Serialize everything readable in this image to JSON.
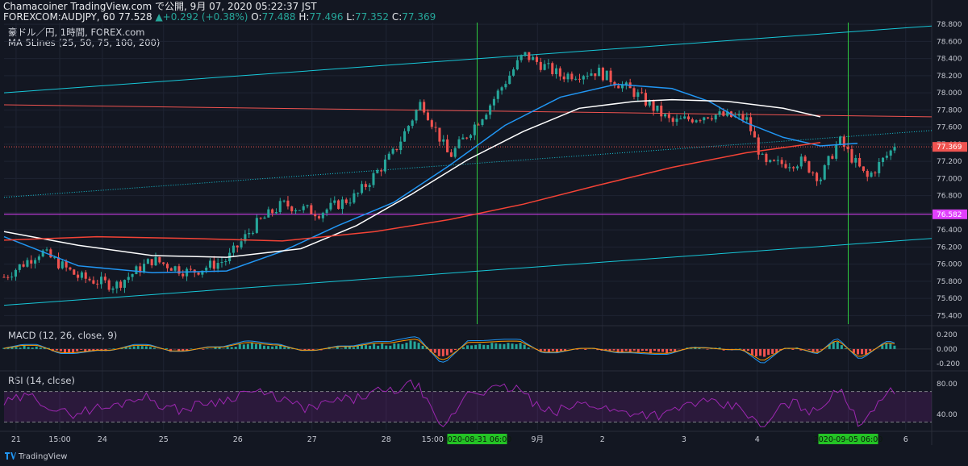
{
  "header": {
    "line1": "Chamacoiner TradingView.com で公開, 9月 07, 2020 05:22:37 JST",
    "line2_prefix": "FOREXCOM:AUDJPY, 60 77.528",
    "line2_change": "▲+0.292 (+0.38%)",
    "line2_ohlc": [
      {
        "label": "O:",
        "value": "77.488"
      },
      {
        "label": "H:",
        "value": "77.496"
      },
      {
        "label": "L:",
        "value": "77.352"
      },
      {
        "label": "C:",
        "value": "77.369"
      }
    ]
  },
  "legend": {
    "symbol": "豪ドル／円, 1時間, FOREX.com",
    "ma": "MA 5Lines (25, 50, 75, 100, 200)",
    "macd": "MACD (12, 26, close, 9)",
    "rsi": "RSI (14, close)"
  },
  "footer": {
    "brand": "TradingView"
  },
  "colors": {
    "background": "#131722",
    "up": "#26a69a",
    "down": "#ef5350",
    "ma_blue": "#2196f3",
    "ma_white": "#ffffff",
    "ma_red": "#f44336",
    "channel": "#17c7d8",
    "level": "#e040fb",
    "vline": "#2ecc40",
    "rsi_line": "#9c27b0"
  },
  "chart_data": [
    {
      "type": "candlestick",
      "ylim": [
        75.3,
        78.82
      ],
      "yticks": [
        "78.800",
        "78.600",
        "78.400",
        "78.200",
        "78.000",
        "77.800",
        "77.600",
        "77.400",
        "77.200",
        "77.000",
        "76.800",
        "76.600",
        "76.400",
        "76.200",
        "76.000",
        "75.800",
        "75.600",
        "75.400"
      ],
      "xticks": [
        "21",
        "15:00",
        "24",
        "25",
        "26",
        "27",
        "28",
        "15:00",
        "2020-08-31  06:00",
        "9月",
        "2",
        "3",
        "4",
        "2020-09-05  06:00",
        "6"
      ],
      "price_tags": [
        {
          "label": "77.369",
          "value": 77.369,
          "color": "#ef5350"
        },
        {
          "label": "76.582",
          "value": 76.582,
          "color": "#e040fb"
        }
      ],
      "horizontal_levels": [
        {
          "value": 76.582,
          "color": "#e040fb"
        }
      ],
      "anchor_closes": [
        {
          "x": 0,
          "close": 75.85
        },
        {
          "x": 0.04,
          "close": 76.15
        },
        {
          "x": 0.08,
          "close": 75.85
        },
        {
          "x": 0.12,
          "close": 75.75
        },
        {
          "x": 0.16,
          "close": 76.05
        },
        {
          "x": 0.2,
          "close": 75.9
        },
        {
          "x": 0.24,
          "close": 76.05
        },
        {
          "x": 0.27,
          "close": 76.45
        },
        {
          "x": 0.3,
          "close": 76.7
        },
        {
          "x": 0.34,
          "close": 76.6
        },
        {
          "x": 0.38,
          "close": 76.8
        },
        {
          "x": 0.42,
          "close": 77.3
        },
        {
          "x": 0.45,
          "close": 77.9
        },
        {
          "x": 0.48,
          "close": 77.25
        },
        {
          "x": 0.52,
          "close": 77.8
        },
        {
          "x": 0.56,
          "close": 78.45
        },
        {
          "x": 0.6,
          "close": 78.2
        },
        {
          "x": 0.64,
          "close": 78.25
        },
        {
          "x": 0.68,
          "close": 78.0
        },
        {
          "x": 0.72,
          "close": 77.65
        },
        {
          "x": 0.76,
          "close": 77.75
        },
        {
          "x": 0.8,
          "close": 77.7
        },
        {
          "x": 0.82,
          "close": 77.15
        },
        {
          "x": 0.86,
          "close": 77.2
        },
        {
          "x": 0.88,
          "close": 77.0
        },
        {
          "x": 0.9,
          "close": 77.45
        },
        {
          "x": 0.93,
          "close": 77.0
        },
        {
          "x": 0.96,
          "close": 77.369
        }
      ],
      "ma_lines": [
        {
          "color": "#2196f3",
          "points": [
            [
              0,
              76.32
            ],
            [
              0.08,
              75.98
            ],
            [
              0.16,
              75.9
            ],
            [
              0.24,
              75.92
            ],
            [
              0.3,
              76.15
            ],
            [
              0.36,
              76.45
            ],
            [
              0.42,
              76.72
            ],
            [
              0.48,
              77.15
            ],
            [
              0.54,
              77.62
            ],
            [
              0.6,
              77.95
            ],
            [
              0.66,
              78.1
            ],
            [
              0.72,
              78.05
            ],
            [
              0.76,
              77.9
            ],
            [
              0.8,
              77.65
            ],
            [
              0.84,
              77.48
            ],
            [
              0.88,
              77.38
            ],
            [
              0.92,
              77.41
            ]
          ]
        },
        {
          "color": "#ffffff",
          "points": [
            [
              0,
              76.38
            ],
            [
              0.08,
              76.22
            ],
            [
              0.16,
              76.1
            ],
            [
              0.24,
              76.08
            ],
            [
              0.32,
              76.18
            ],
            [
              0.38,
              76.45
            ],
            [
              0.44,
              76.82
            ],
            [
              0.5,
              77.22
            ],
            [
              0.56,
              77.55
            ],
            [
              0.62,
              77.82
            ],
            [
              0.68,
              77.9
            ],
            [
              0.72,
              77.92
            ],
            [
              0.78,
              77.9
            ],
            [
              0.84,
              77.82
            ],
            [
              0.88,
              77.72
            ]
          ]
        },
        {
          "color": "#f44336",
          "points": [
            [
              0,
              76.28
            ],
            [
              0.1,
              76.32
            ],
            [
              0.2,
              76.3
            ],
            [
              0.3,
              76.27
            ],
            [
              0.4,
              76.38
            ],
            [
              0.48,
              76.52
            ],
            [
              0.56,
              76.7
            ],
            [
              0.64,
              76.92
            ],
            [
              0.72,
              77.13
            ],
            [
              0.8,
              77.3
            ],
            [
              0.88,
              77.42
            ]
          ]
        }
      ],
      "channel_lines": [
        {
          "color": "#17c7d8",
          "points": [
            [
              0,
              78.0
            ],
            [
              1,
              78.78
            ]
          ]
        },
        {
          "color": "#17c7d8",
          "points": [
            [
              0,
              75.52
            ],
            [
              1,
              76.3
            ]
          ]
        },
        {
          "color": "#17c7d8",
          "dotted": true,
          "points": [
            [
              0,
              76.78
            ],
            [
              1,
              77.56
            ]
          ]
        },
        {
          "color": "#ef5350",
          "points": [
            [
              0,
              77.86
            ],
            [
              1,
              77.72
            ]
          ]
        }
      ]
    },
    {
      "type": "bar",
      "ylim": [
        -0.28,
        0.3
      ],
      "yticks": [
        "0.200",
        "0.000",
        "-0.200"
      ]
    },
    {
      "type": "line",
      "ylim": [
        20,
        95
      ],
      "yticks": [
        "80.00",
        "40.00"
      ],
      "bands": [
        30,
        70
      ]
    }
  ]
}
